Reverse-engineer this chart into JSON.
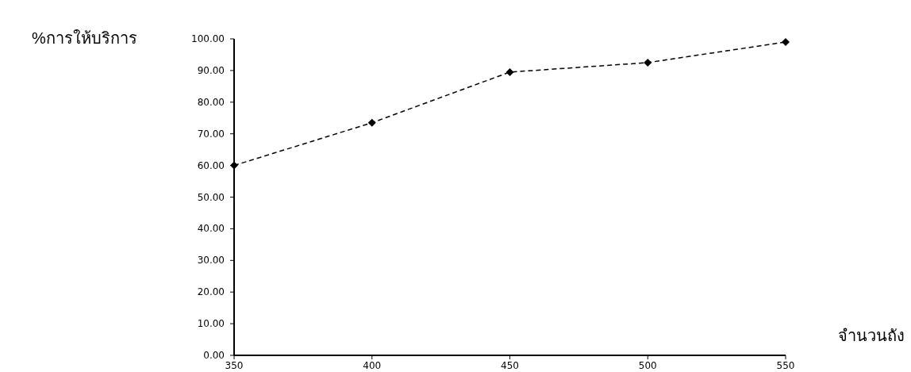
{
  "chart_data": {
    "type": "line",
    "xlabel": "จำนวนถัง",
    "ylabel": "%การให้บริการ",
    "x": [
      350,
      400,
      450,
      500,
      550
    ],
    "series": [
      {
        "color": "#000000",
        "values": [
          60,
          73.5,
          89.5,
          92.5,
          99
        ]
      }
    ],
    "xlim": [
      350,
      550
    ],
    "xticks": [
      350,
      400,
      450,
      500,
      550
    ],
    "ylim": [
      0,
      100
    ],
    "yticks": [
      {
        "value": 0,
        "label": "0.00"
      },
      {
        "value": 10,
        "label": "10.00"
      },
      {
        "value": 20,
        "label": "20.00"
      },
      {
        "value": 30,
        "label": "30.00"
      },
      {
        "value": 40,
        "label": "40.00"
      },
      {
        "value": 50,
        "label": "50.00"
      },
      {
        "value": 60,
        "label": "60.00"
      },
      {
        "value": 70,
        "label": "70.00"
      },
      {
        "value": 80,
        "label": "80.00"
      },
      {
        "value": 90,
        "label": "90.00"
      },
      {
        "value": 100,
        "label": "100.00"
      }
    ],
    "marker": "diamond",
    "line_style": "dashed",
    "grid": false
  }
}
